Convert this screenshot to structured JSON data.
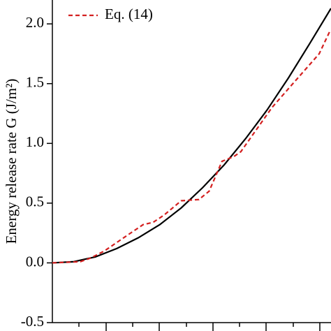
{
  "chart_data": {
    "type": "line",
    "y_label": "Energy release rate G (J/m²)",
    "xlim": [
      0,
      5.19
    ],
    "ylim": [
      -0.5,
      2.2
    ],
    "yticks": [
      -0.5,
      {
        "value": 0,
        "label": "0.0"
      },
      0.5,
      {
        "value": 1,
        "label": "1.0"
      },
      1.5,
      {
        "value": 2,
        "label": "2.0"
      }
    ],
    "series": [
      {
        "color": "#000000",
        "dash": false,
        "x": [
          0,
          0.4,
          0.8,
          1.2,
          1.6,
          2.0,
          2.4,
          2.8,
          3.2,
          3.6,
          4.0,
          4.4,
          4.8,
          5.19
        ],
        "values": [
          0,
          0.01,
          0.05,
          0.12,
          0.21,
          0.32,
          0.46,
          0.63,
          0.82,
          1.04,
          1.28,
          1.55,
          1.84,
          2.13
        ]
      },
      {
        "name": "Eq. (14)",
        "color": "#d42020",
        "dash": true,
        "x": [
          0,
          0.52,
          0.71,
          0.97,
          1.36,
          1.69,
          1.88,
          2.08,
          2.4,
          2.73,
          2.92,
          3.16,
          3.38,
          3.51,
          4.09,
          4.48,
          4.97,
          5.18
        ],
        "values": [
          0,
          0.01,
          0.04,
          0.1,
          0.22,
          0.32,
          0.34,
          0.4,
          0.52,
          0.53,
          0.6,
          0.85,
          0.89,
          0.93,
          1.3,
          1.5,
          1.75,
          1.95
        ]
      }
    ]
  }
}
